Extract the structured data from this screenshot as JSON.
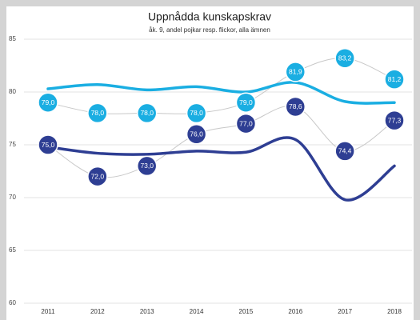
{
  "chart_data": {
    "type": "line",
    "title": "Uppnådda kunskapskrav",
    "subtitle": "åk. 9, andel pojkar resp. flickor, alla ämnen",
    "categories": [
      "2011",
      "2012",
      "2013",
      "2014",
      "2015",
      "2016",
      "2017",
      "2018"
    ],
    "ylim": [
      60,
      85
    ],
    "yticks": [
      60,
      65,
      70,
      75,
      80,
      85
    ],
    "grid": true,
    "connector_color": "#c8c8c8",
    "series": [
      {
        "color": "#1aaee2",
        "values": [
          79.0,
          78.0,
          78.0,
          78.0,
          79.0,
          81.9,
          83.2,
          81.2
        ],
        "value_labels": [
          "79,0",
          "78,0",
          "78,0",
          "78,0",
          "79,0",
          "81,9",
          "83,2",
          "81,2"
        ],
        "line_values": [
          80.3,
          80.7,
          80.2,
          80.5,
          80.0,
          80.9,
          79.1,
          79.0
        ]
      },
      {
        "color": "#2e3e93",
        "values": [
          75.0,
          72.0,
          73.0,
          76.0,
          77.0,
          78.6,
          74.4,
          77.3
        ],
        "value_labels": [
          "75,0",
          "72,0",
          "73,0",
          "76,0",
          "77,0",
          "78,6",
          "74,4",
          "77,3"
        ],
        "line_values": [
          74.8,
          74.2,
          74.1,
          74.4,
          74.3,
          75.5,
          69.8,
          73.0
        ]
      }
    ]
  }
}
